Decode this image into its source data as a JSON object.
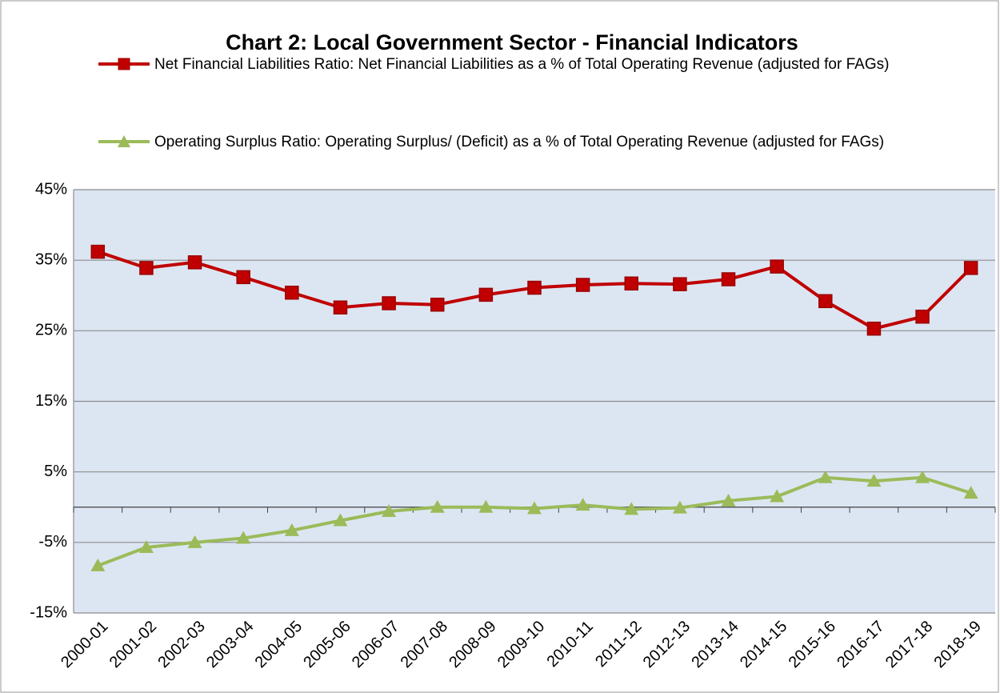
{
  "chart_data": {
    "type": "line",
    "title": "Chart 2: Local Government Sector - Financial Indicators",
    "categories": [
      "2000-01",
      "2001-02",
      "2002-03",
      "2003-04",
      "2004-05",
      "2005-06",
      "2006-07",
      "2007-08",
      "2008-09",
      "2009-10",
      "2010-11",
      "2011-12",
      "2012-13",
      "2013-14",
      "2014-15",
      "2015-16",
      "2016-17",
      "2017-18",
      "2018-19"
    ],
    "series": [
      {
        "name": "Net Financial Liabilities Ratio: Net Financial Liabilities as a % of Total Operating Revenue (adjusted for FAGs)",
        "color": "#c00000",
        "marker": "square",
        "values": [
          36.2,
          33.9,
          34.7,
          32.6,
          30.4,
          28.3,
          28.9,
          28.7,
          30.1,
          31.1,
          31.5,
          31.7,
          31.6,
          32.3,
          34.1,
          29.2,
          25.3,
          27.0,
          33.9
        ]
      },
      {
        "name": "Operating Surplus Ratio: Operating Surplus/ (Deficit) as a % of Total Operating Revenue (adjusted for FAGs)",
        "color": "#9bbb59",
        "marker": "triangle",
        "values": [
          -8.3,
          -5.7,
          -5.0,
          -4.4,
          -3.3,
          -1.9,
          -0.6,
          0,
          0,
          -0.2,
          0.3,
          -0.3,
          -0.1,
          0.9,
          1.5,
          4.2,
          3.7,
          4.2,
          2.0
        ]
      }
    ],
    "ylim": [
      -15,
      45
    ],
    "yticks": [
      {
        "value": -15,
        "label": "-15%"
      },
      {
        "value": -5,
        "label": "-5%"
      },
      {
        "value": 5,
        "label": "5%"
      },
      {
        "value": 15,
        "label": "15%"
      },
      {
        "value": 25,
        "label": "25%"
      },
      {
        "value": 35,
        "label": "35%"
      },
      {
        "value": 45,
        "label": "45%"
      }
    ],
    "grid": true
  }
}
